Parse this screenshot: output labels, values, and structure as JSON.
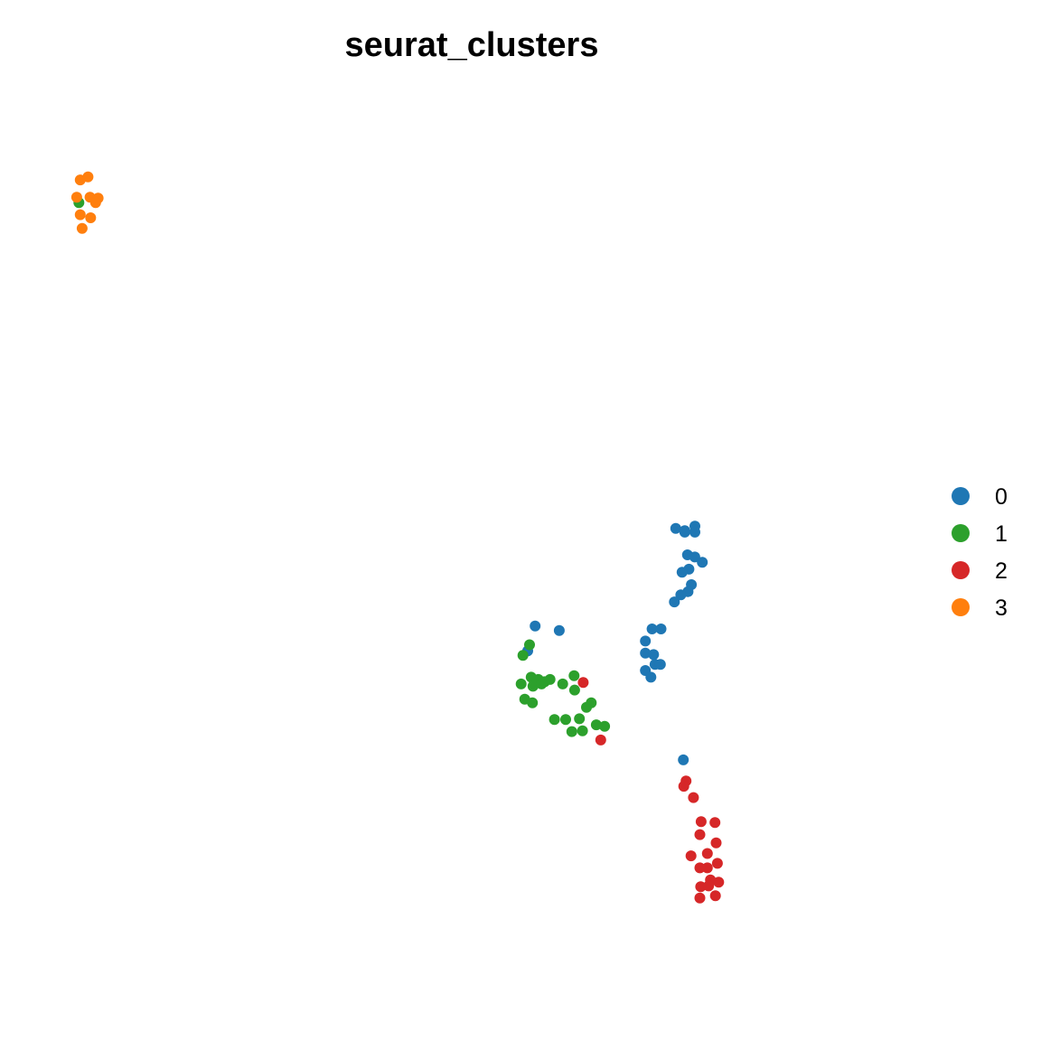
{
  "chart_data": {
    "type": "scatter",
    "title": "seurat_clusters",
    "xlabel": "",
    "ylabel": "",
    "grid": false,
    "axes_visible": false,
    "legend_placement": "right",
    "xlim": [
      0,
      100
    ],
    "ylim": [
      0,
      100
    ],
    "series": [
      {
        "name": "0",
        "color": "#1F77B4",
        "points": [
          [
            75.37,
            51.41
          ],
          [
            76.5,
            51.14
          ],
          [
            77.76,
            51.67
          ],
          [
            76.5,
            50.96
          ],
          [
            77.77,
            50.96
          ],
          [
            76.84,
            48.31
          ],
          [
            77.75,
            48.05
          ],
          [
            78.69,
            47.43
          ],
          [
            77.02,
            46.62
          ],
          [
            76.16,
            46.27
          ],
          [
            77.32,
            44.81
          ],
          [
            76.91,
            43.99
          ],
          [
            76.0,
            43.62
          ],
          [
            75.2,
            42.79
          ],
          [
            72.42,
            39.62
          ],
          [
            73.53,
            39.62
          ],
          [
            71.58,
            38.2
          ],
          [
            71.58,
            36.78
          ],
          [
            72.61,
            36.61
          ],
          [
            72.79,
            35.46
          ],
          [
            73.45,
            35.46
          ],
          [
            71.58,
            34.75
          ],
          [
            72.27,
            33.96
          ],
          [
            57.81,
            39.97
          ],
          [
            60.82,
            39.44
          ],
          [
            56.88,
            37.05
          ],
          [
            76.32,
            24.27
          ]
        ]
      },
      {
        "name": "1",
        "color": "#2CA02C",
        "points": [
          [
            0.82,
            89.6
          ],
          [
            57.11,
            37.76
          ],
          [
            56.29,
            36.52
          ],
          [
            57.31,
            33.96
          ],
          [
            58.2,
            33.7
          ],
          [
            59.01,
            33.43
          ],
          [
            59.67,
            33.7
          ],
          [
            56.06,
            33.17
          ],
          [
            57.54,
            32.9
          ],
          [
            58.61,
            33.17
          ],
          [
            61.25,
            33.17
          ],
          [
            62.67,
            34.13
          ],
          [
            62.74,
            32.46
          ],
          [
            56.51,
            31.39
          ],
          [
            57.47,
            30.95
          ],
          [
            64.82,
            30.95
          ],
          [
            64.22,
            30.42
          ],
          [
            60.23,
            29.0
          ],
          [
            61.63,
            29.0
          ],
          [
            63.34,
            29.09
          ],
          [
            65.45,
            28.38
          ],
          [
            66.49,
            28.2
          ],
          [
            62.39,
            27.58
          ],
          [
            63.73,
            27.67
          ]
        ]
      },
      {
        "name": "2",
        "color": "#D62728",
        "points": [
          [
            63.81,
            33.34
          ],
          [
            66.0,
            26.6
          ],
          [
            76.66,
            21.8
          ],
          [
            76.38,
            21.18
          ],
          [
            77.59,
            19.85
          ],
          [
            78.54,
            17.02
          ],
          [
            80.27,
            16.93
          ],
          [
            78.39,
            15.51
          ],
          [
            80.42,
            14.53
          ],
          [
            79.32,
            13.29
          ],
          [
            77.28,
            13.02
          ],
          [
            80.57,
            12.14
          ],
          [
            79.32,
            11.61
          ],
          [
            78.39,
            11.61
          ],
          [
            79.71,
            10.2
          ],
          [
            80.73,
            9.93
          ],
          [
            78.49,
            9.4
          ],
          [
            79.48,
            9.49
          ],
          [
            78.39,
            8.07
          ],
          [
            80.33,
            8.34
          ]
        ]
      },
      {
        "name": "3",
        "color": "#FF7F0E",
        "points": [
          [
            1.96,
            92.61
          ],
          [
            0.99,
            92.26
          ],
          [
            0.55,
            90.22
          ],
          [
            2.21,
            90.22
          ],
          [
            3.23,
            90.13
          ],
          [
            2.91,
            89.6
          ],
          [
            0.99,
            88.18
          ],
          [
            2.29,
            87.82
          ],
          [
            1.23,
            86.58
          ]
        ]
      }
    ]
  }
}
